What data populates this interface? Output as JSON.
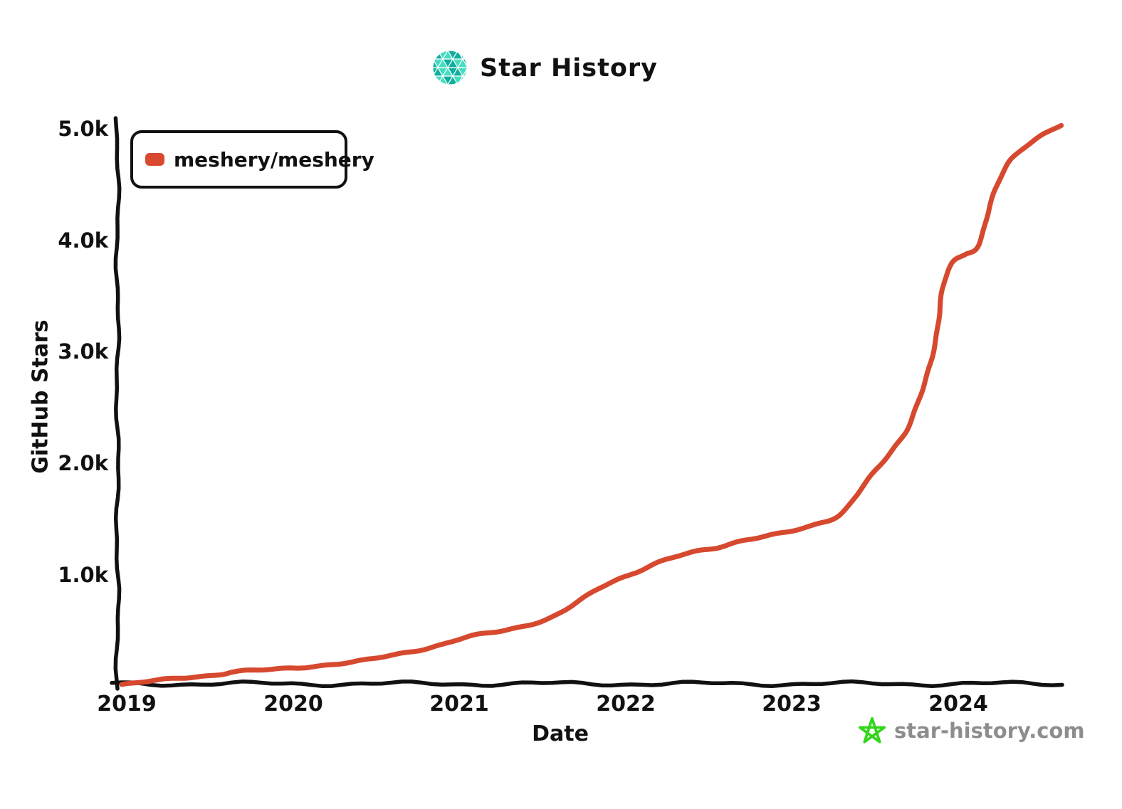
{
  "title": "Star History",
  "legend": {
    "label": "meshery/meshery"
  },
  "y_axis": {
    "label": "GitHub Stars",
    "ticks": [
      "5.0k",
      "4.0k",
      "3.0k",
      "2.0k",
      "1.0k"
    ]
  },
  "x_axis": {
    "label": "Date",
    "ticks": [
      "2019",
      "2020",
      "2021",
      "2022",
      "2023",
      "2024"
    ]
  },
  "footer": {
    "site": "star-history.com"
  },
  "colors": {
    "line": "#d6492f",
    "axis": "#111111",
    "legend_marker": "#d9492f",
    "logo_teal_dark": "#0fae9e",
    "logo_teal_light": "#45ddc0",
    "footer_star_green": "#35d51e",
    "footer_text_gray": "#8d8d8d"
  },
  "chart_data": {
    "type": "line",
    "title": "Star History",
    "xlabel": "Date",
    "ylabel": "GitHub Stars",
    "xlim": [
      2018.95,
      2024.68
    ],
    "ylim": [
      0,
      5100
    ],
    "x_ticks": [
      2019,
      2020,
      2021,
      2022,
      2023,
      2024
    ],
    "y_ticks": [
      1000,
      2000,
      3000,
      4000,
      5000
    ],
    "grid": false,
    "legend_position": "top-left",
    "style": "xkcd-hand-drawn",
    "series": [
      {
        "name": "meshery/meshery",
        "color": "#d6492f",
        "points": [
          [
            2018.97,
            10
          ],
          [
            2019.15,
            35
          ],
          [
            2019.35,
            65
          ],
          [
            2019.55,
            100
          ],
          [
            2019.65,
            125
          ],
          [
            2019.85,
            135
          ],
          [
            2020.0,
            152
          ],
          [
            2020.2,
            185
          ],
          [
            2020.45,
            225
          ],
          [
            2020.7,
            300
          ],
          [
            2020.9,
            370
          ],
          [
            2021.05,
            430
          ],
          [
            2021.25,
            485
          ],
          [
            2021.45,
            560
          ],
          [
            2021.6,
            640
          ],
          [
            2021.75,
            780
          ],
          [
            2021.9,
            920
          ],
          [
            2022.05,
            1010
          ],
          [
            2022.2,
            1100
          ],
          [
            2022.4,
            1190
          ],
          [
            2022.55,
            1240
          ],
          [
            2022.7,
            1300
          ],
          [
            2022.85,
            1335
          ],
          [
            2023.0,
            1380
          ],
          [
            2023.15,
            1450
          ],
          [
            2023.3,
            1550
          ],
          [
            2023.45,
            1820
          ],
          [
            2023.6,
            2110
          ],
          [
            2023.7,
            2330
          ],
          [
            2023.8,
            2700
          ],
          [
            2023.86,
            3100
          ],
          [
            2023.91,
            3550
          ],
          [
            2023.96,
            3780
          ],
          [
            2024.04,
            3870
          ],
          [
            2024.12,
            3960
          ],
          [
            2024.2,
            4330
          ],
          [
            2024.28,
            4640
          ],
          [
            2024.36,
            4790
          ],
          [
            2024.48,
            4915
          ],
          [
            2024.62,
            5020
          ]
        ]
      }
    ]
  }
}
